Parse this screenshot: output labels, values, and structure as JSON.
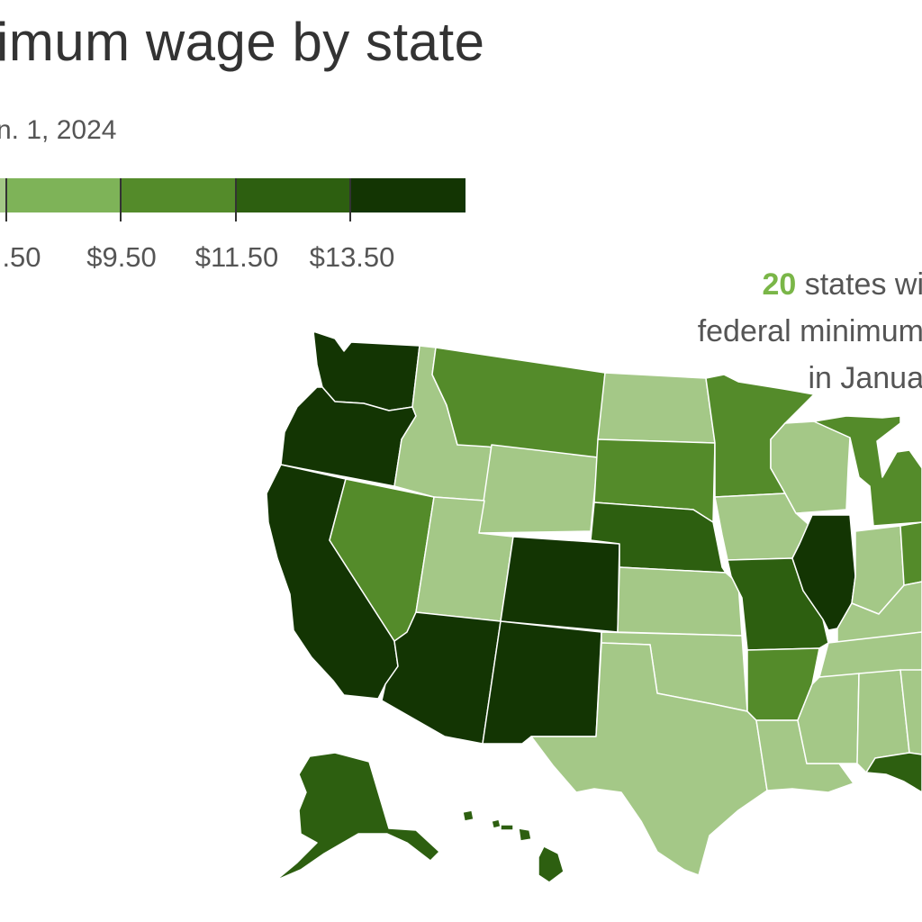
{
  "header": {
    "title": "imum wage by state",
    "subtitle": "n. 1, 2024"
  },
  "legend": {
    "colors": [
      "#a4c887",
      "#7eb358",
      "#548b2a",
      "#2d5f10",
      "#133503"
    ],
    "labels": [
      ".50",
      "$9.50",
      "$11.50",
      "$13.50"
    ]
  },
  "annotation": {
    "count": "20",
    "line1_rest": " states wi",
    "line2": "federal minimum",
    "line3": "in Janua"
  },
  "map_data": {
    "tiers": {
      "t1": "#a4c887",
      "t2": "#548b2a",
      "t3": "#2d5f10",
      "t4": "#133503"
    },
    "states": [
      {
        "name": "Washington",
        "tier": "t4"
      },
      {
        "name": "Oregon",
        "tier": "t4"
      },
      {
        "name": "California",
        "tier": "t4"
      },
      {
        "name": "Nevada",
        "tier": "t2"
      },
      {
        "name": "Idaho",
        "tier": "t1"
      },
      {
        "name": "Montana",
        "tier": "t2"
      },
      {
        "name": "Wyoming",
        "tier": "t1"
      },
      {
        "name": "Utah",
        "tier": "t1"
      },
      {
        "name": "Arizona",
        "tier": "t4"
      },
      {
        "name": "Colorado",
        "tier": "t4"
      },
      {
        "name": "New Mexico",
        "tier": "t4"
      },
      {
        "name": "North Dakota",
        "tier": "t1"
      },
      {
        "name": "South Dakota",
        "tier": "t2"
      },
      {
        "name": "Nebraska",
        "tier": "t3"
      },
      {
        "name": "Kansas",
        "tier": "t1"
      },
      {
        "name": "Oklahoma",
        "tier": "t1"
      },
      {
        "name": "Texas",
        "tier": "t1"
      },
      {
        "name": "Minnesota",
        "tier": "t2"
      },
      {
        "name": "Iowa",
        "tier": "t1"
      },
      {
        "name": "Missouri",
        "tier": "t3"
      },
      {
        "name": "Arkansas",
        "tier": "t2"
      },
      {
        "name": "Louisiana",
        "tier": "t1"
      },
      {
        "name": "Wisconsin",
        "tier": "t1"
      },
      {
        "name": "Illinois",
        "tier": "t4"
      },
      {
        "name": "Michigan",
        "tier": "t2"
      },
      {
        "name": "Indiana",
        "tier": "t1"
      },
      {
        "name": "Ohio",
        "tier": "t2"
      },
      {
        "name": "Kentucky",
        "tier": "t1"
      },
      {
        "name": "Tennessee",
        "tier": "t1"
      },
      {
        "name": "Mississippi",
        "tier": "t1"
      },
      {
        "name": "Alabama",
        "tier": "t1"
      },
      {
        "name": "Georgia",
        "tier": "t1"
      },
      {
        "name": "Florida",
        "tier": "t3"
      },
      {
        "name": "Alaska",
        "tier": "t3"
      },
      {
        "name": "Hawaii",
        "tier": "t3"
      }
    ]
  }
}
